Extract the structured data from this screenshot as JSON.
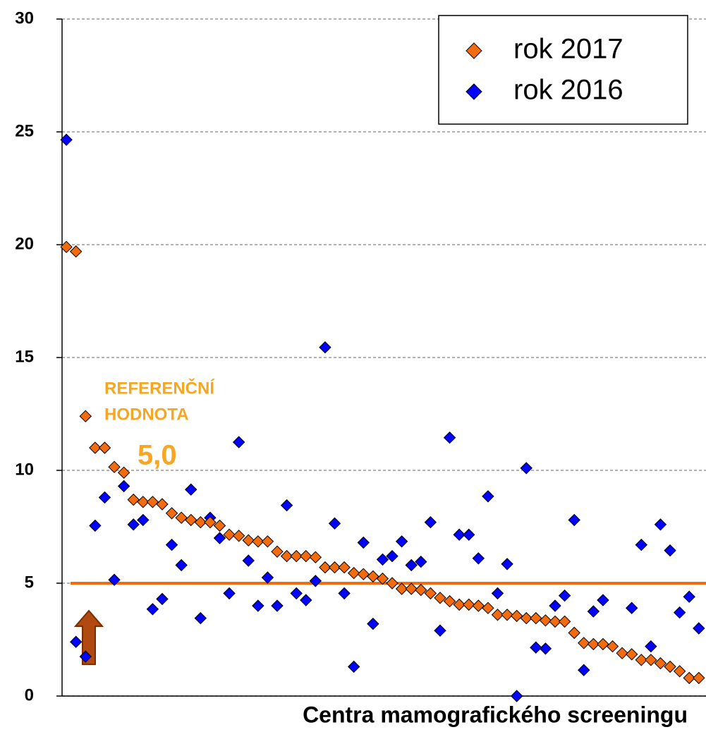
{
  "chart_data": {
    "type": "scatter",
    "xlabel": "Centra mamografického screeningu",
    "annotations": [
      "REFERENČNÍ",
      "HODNOTA",
      "5,0"
    ],
    "reference_line": {
      "value": 5,
      "color": "#f26b0f"
    },
    "x": [
      1,
      2,
      3,
      4,
      5,
      6,
      7,
      8,
      9,
      10,
      11,
      12,
      13,
      14,
      15,
      16,
      17,
      18,
      19,
      20,
      21,
      22,
      23,
      24,
      25,
      26,
      27,
      28,
      29,
      30,
      31,
      32,
      33,
      34,
      35,
      36,
      37,
      38,
      39,
      40,
      41,
      42,
      43,
      44,
      45,
      46,
      47,
      48,
      49,
      50,
      51,
      52,
      53,
      54,
      55,
      56,
      57,
      58,
      59,
      60,
      61,
      62,
      63,
      64,
      65,
      66,
      67
    ],
    "series": [
      {
        "name": "rok 2016",
        "color": "#0000ff",
        "values": [
          24.65,
          2.4,
          1.75,
          7.55,
          8.8,
          5.15,
          9.3,
          7.6,
          7.8,
          3.85,
          4.3,
          6.7,
          5.8,
          9.15,
          3.45,
          7.9,
          7.0,
          4.55,
          11.25,
          6.0,
          4.0,
          5.25,
          4.0,
          8.45,
          4.55,
          4.25,
          5.1,
          15.45,
          7.65,
          4.55,
          1.3,
          6.8,
          3.2,
          6.05,
          6.2,
          6.85,
          5.8,
          5.95,
          7.7,
          2.9,
          11.45,
          7.15,
          7.15,
          6.1,
          8.85,
          4.55,
          5.85,
          0,
          10.1,
          2.15,
          2.1,
          4.0,
          4.45,
          7.8,
          1.15,
          3.75,
          4.25,
          null,
          null,
          3.9,
          6.7,
          2.2,
          7.6,
          6.45,
          3.7,
          4.4,
          3.0
        ]
      },
      {
        "name": "rok 2017",
        "color": "#f26b0f",
        "values": [
          19.9,
          19.7,
          12.4,
          11.0,
          11.0,
          10.15,
          9.9,
          8.7,
          8.6,
          8.6,
          8.5,
          8.1,
          7.9,
          7.8,
          7.7,
          7.7,
          7.55,
          7.15,
          7.1,
          6.9,
          6.85,
          6.85,
          6.4,
          6.2,
          6.2,
          6.2,
          6.15,
          5.7,
          5.7,
          5.7,
          5.45,
          5.4,
          5.3,
          5.2,
          5.0,
          4.75,
          4.75,
          4.7,
          4.55,
          4.35,
          4.2,
          4.05,
          4.05,
          4.0,
          3.9,
          3.6,
          3.6,
          3.55,
          3.45,
          3.45,
          3.35,
          3.3,
          3.3,
          2.8,
          2.35,
          2.3,
          2.3,
          2.2,
          1.9,
          1.85,
          1.6,
          1.6,
          1.45,
          1.3,
          1.1,
          0.8,
          0.8
        ]
      }
    ],
    "legend_order": [
      1,
      0
    ],
    "xlim": [
      0.55,
      67.75
    ],
    "ylim": [
      0,
      30
    ],
    "yticks": [
      0,
      5,
      10,
      15,
      20,
      25,
      30
    ],
    "grid": true,
    "legend": "upper right"
  }
}
